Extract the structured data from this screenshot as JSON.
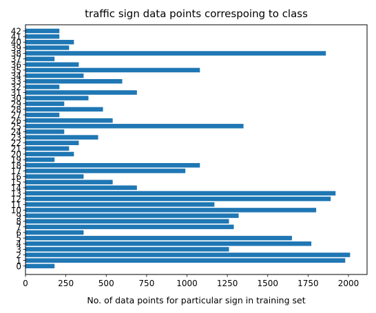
{
  "chart_data": {
    "type": "bar",
    "orientation": "horizontal",
    "title": "traffic sign data points correspoing to class",
    "xlabel": "No. of data points for particular sign in training set",
    "ylabel": "",
    "xlim": [
      0,
      2115
    ],
    "ylim": [
      -1.5,
      43.1
    ],
    "x_ticks": [
      0,
      250,
      500,
      750,
      1000,
      1250,
      1500,
      1750,
      2000
    ],
    "bar_color": "#1f77b4",
    "grid": false,
    "categories": [
      "0",
      "1",
      "2",
      "3",
      "4",
      "5",
      "6",
      "7",
      "8",
      "9",
      "10",
      "11",
      "12",
      "13",
      "14",
      "15",
      "16",
      "17",
      "18",
      "19",
      "20",
      "21",
      "22",
      "23",
      "24",
      "25",
      "26",
      "27",
      "28",
      "29",
      "30",
      "31",
      "32",
      "33",
      "34",
      "35",
      "36",
      "37",
      "38",
      "39",
      "40",
      "41",
      "42"
    ],
    "values": [
      180,
      1980,
      2010,
      1260,
      1770,
      1650,
      360,
      1290,
      1260,
      1320,
      1800,
      1170,
      1890,
      1920,
      690,
      540,
      360,
      990,
      1080,
      180,
      300,
      270,
      330,
      450,
      240,
      1350,
      540,
      210,
      480,
      240,
      390,
      690,
      210,
      599,
      360,
      1080,
      330,
      180,
      1860,
      270,
      300,
      210,
      210
    ]
  }
}
